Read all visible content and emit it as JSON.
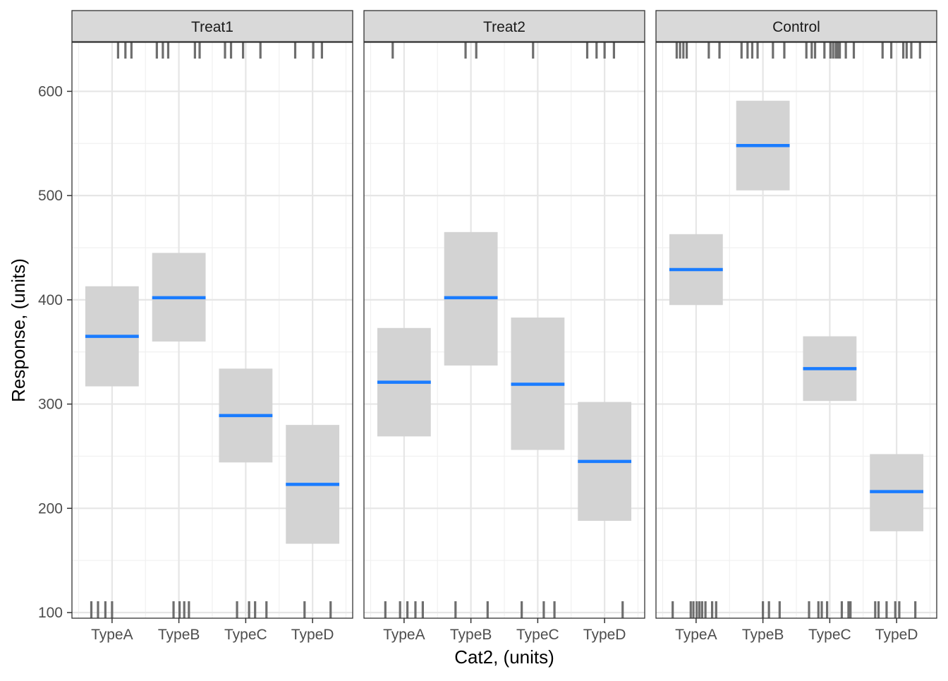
{
  "chart_data": {
    "type": "crossbar",
    "xlabel": "Cat2, (units)",
    "ylabel": "Response, (units)",
    "categories": [
      "TypeA",
      "TypeB",
      "TypeC",
      "TypeD"
    ],
    "ylim": [
      94.6,
      647
    ],
    "yticks": [
      100,
      200,
      300,
      400,
      500,
      600
    ],
    "grid": true,
    "colors": {
      "mean_line": "#1a7cff",
      "band": "#d3d3d3",
      "rug": "#6e6e6e",
      "strip": "#d9d9d9"
    },
    "panels": [
      {
        "title": "Treat1",
        "bars": [
          {
            "category": "TypeA",
            "mean": 365,
            "lower": 317,
            "upper": 413
          },
          {
            "category": "TypeB",
            "mean": 402,
            "lower": 360,
            "upper": 445
          },
          {
            "category": "TypeC",
            "mean": 289,
            "lower": 244,
            "upper": 334
          },
          {
            "category": "TypeD",
            "mean": 223,
            "lower": 166,
            "upper": 280
          }
        ],
        "rug_top": [
          1.09,
          1.2,
          1.29,
          1.67,
          1.76,
          1.84,
          2.24,
          2.31,
          2.69,
          2.78,
          2.96,
          3.22,
          3.74,
          4.01,
          4.14
        ],
        "rug_bottom": [
          0.69,
          0.79,
          0.9,
          1.0,
          1.92,
          2.01,
          2.08,
          2.15,
          2.87,
          3.05,
          3.14,
          3.31,
          3.88,
          4.27
        ]
      },
      {
        "title": "Treat2",
        "bars": [
          {
            "category": "TypeA",
            "mean": 321,
            "lower": 269,
            "upper": 373
          },
          {
            "category": "TypeB",
            "mean": 402,
            "lower": 337,
            "upper": 465
          },
          {
            "category": "TypeC",
            "mean": 319,
            "lower": 256,
            "upper": 383
          },
          {
            "category": "TypeD",
            "mean": 245,
            "lower": 188,
            "upper": 302
          }
        ],
        "rug_top": [
          0.83,
          1.92,
          2.08,
          2.93,
          3.74,
          3.88,
          4.0,
          4.14
        ],
        "rug_bottom": [
          0.72,
          0.94,
          1.05,
          1.17,
          1.28,
          1.77,
          2.25,
          2.76,
          3.09,
          3.25,
          4.27
        ]
      },
      {
        "title": "Control",
        "bars": [
          {
            "category": "TypeA",
            "mean": 429,
            "lower": 395,
            "upper": 463
          },
          {
            "category": "TypeB",
            "mean": 548,
            "lower": 505,
            "upper": 591
          },
          {
            "category": "TypeC",
            "mean": 334,
            "lower": 303,
            "upper": 365
          },
          {
            "category": "TypeD",
            "mean": 216,
            "lower": 178,
            "upper": 252
          }
        ],
        "rug_top": [
          0.71,
          0.76,
          0.81,
          0.86,
          1.19,
          1.35,
          1.68,
          1.77,
          1.84,
          1.92,
          2.15,
          2.32,
          2.65,
          2.73,
          2.78,
          2.92,
          3.01,
          3.05,
          3.09,
          3.12,
          3.15,
          3.24,
          3.36,
          3.79,
          3.92,
          4.1,
          4.15,
          4.22,
          4.35
        ],
        "rug_bottom": [
          0.65,
          0.92,
          0.96,
          1.01,
          1.05,
          1.09,
          1.14,
          1.24,
          1.3,
          2.0,
          2.09,
          2.25,
          2.69,
          2.83,
          2.88,
          2.96,
          3.18,
          3.28,
          3.31,
          3.68,
          3.73,
          3.85,
          3.98,
          4.04,
          4.28
        ]
      }
    ]
  }
}
